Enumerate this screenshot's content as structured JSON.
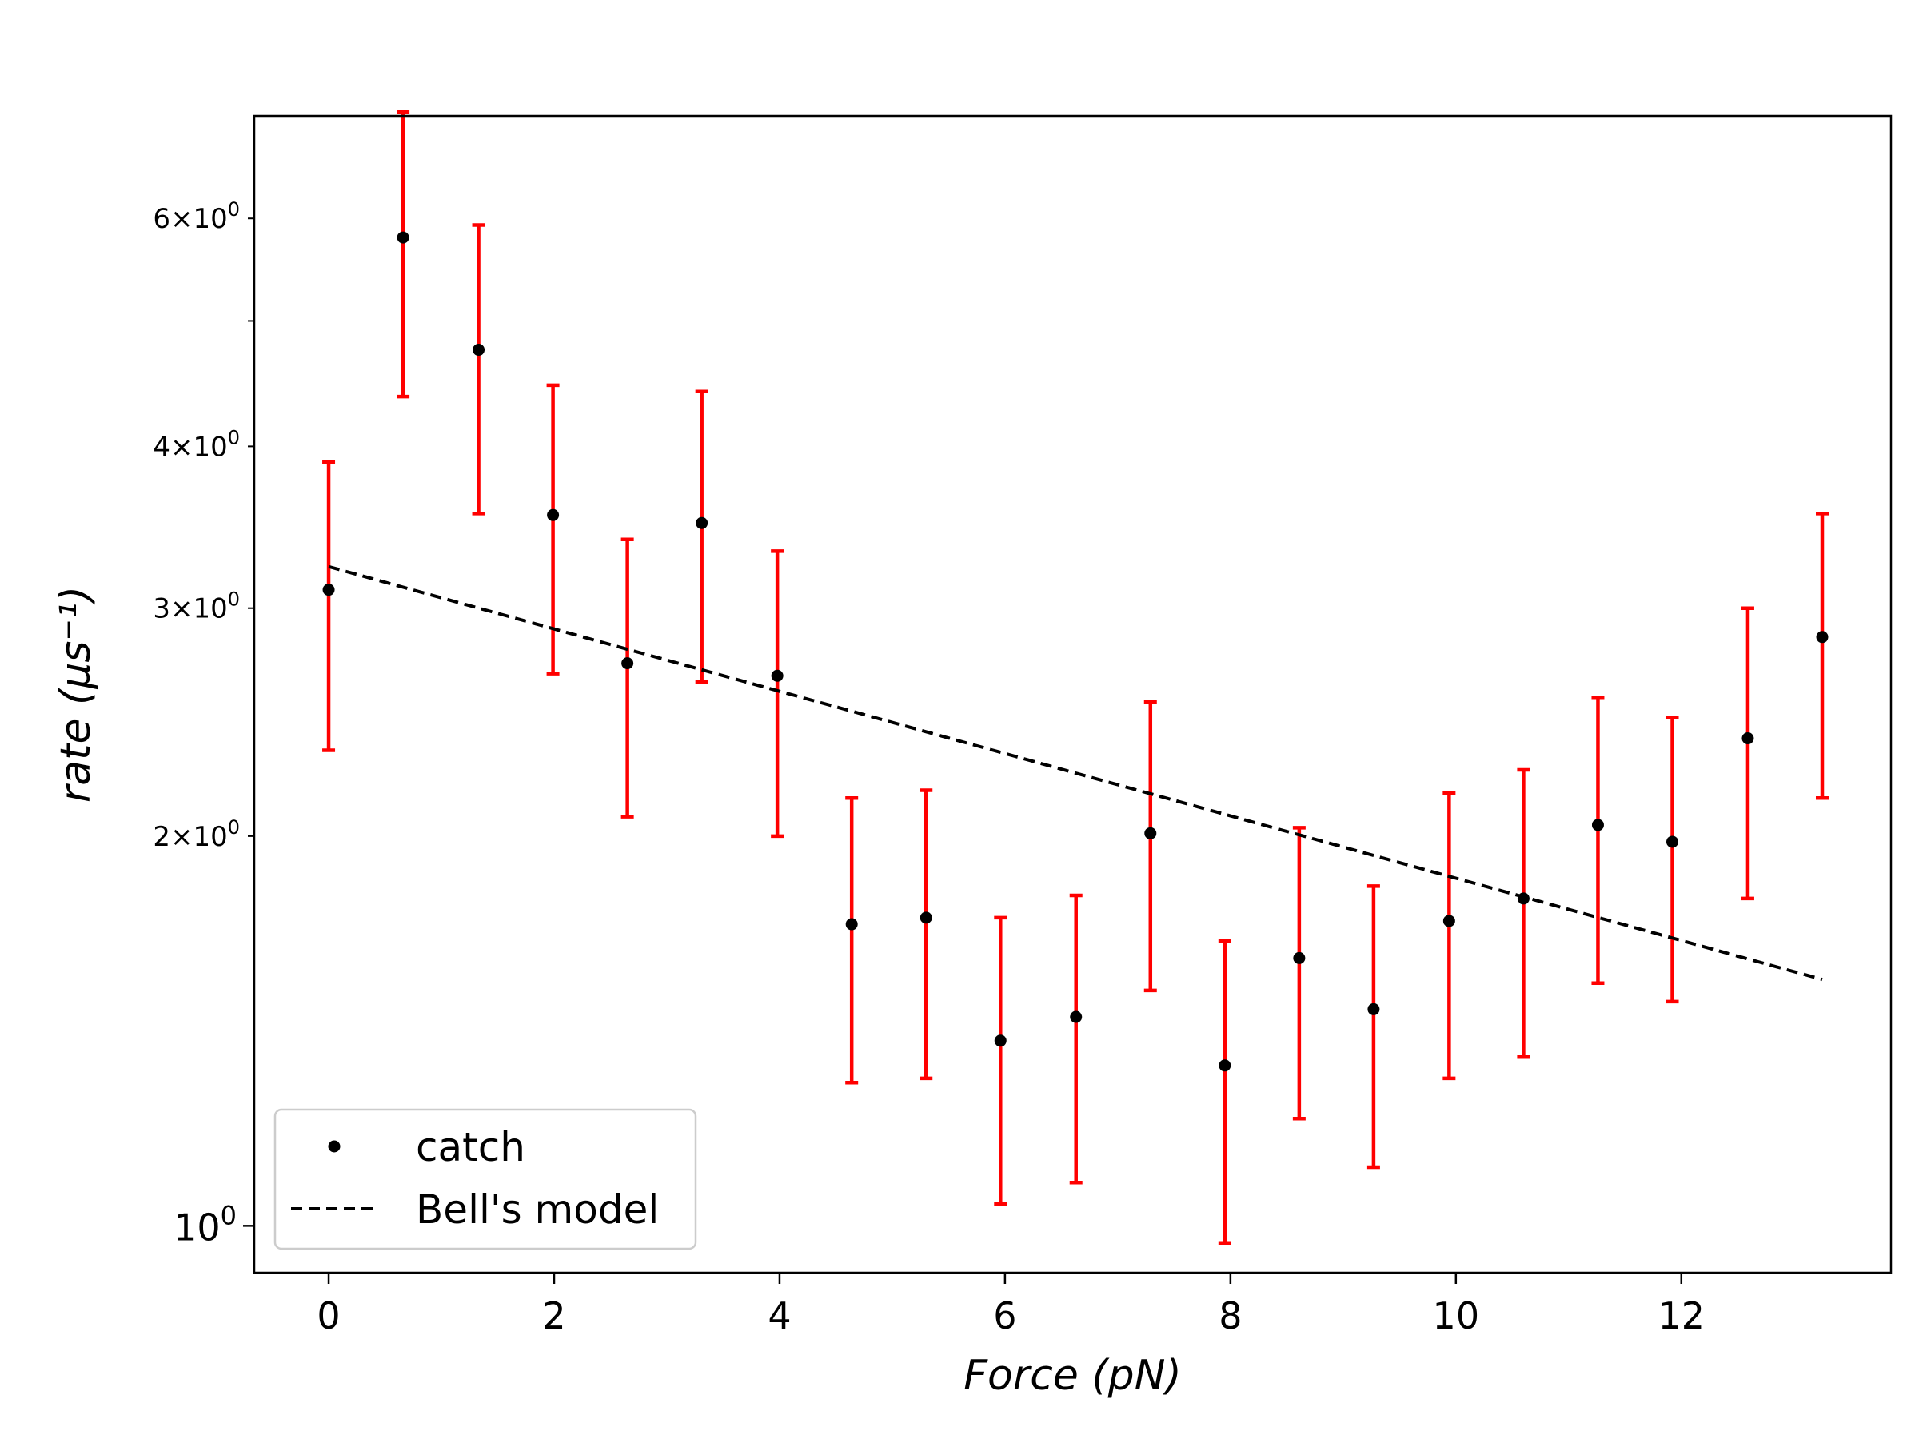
{
  "chart_data": {
    "type": "scatter",
    "xlabel": "Force (pN)",
    "ylabel": "rate (μs⁻¹)",
    "xlim": [
      -0.66,
      13.86
    ],
    "ylim": [
      0.92,
      7.2
    ],
    "y_scale": "log",
    "grid": false,
    "legend_position": "lower-left",
    "x_ticks": [
      0,
      2,
      4,
      6,
      8,
      10,
      12
    ],
    "x_tick_labels": [
      "0",
      "2",
      "4",
      "6",
      "8",
      "10",
      "12"
    ],
    "y_ticks_major": [
      {
        "value": 1,
        "label": "10",
        "exp": "0"
      }
    ],
    "y_ticks_minor_labeled": [
      {
        "value": 2,
        "mantissa": "2",
        "times": "×",
        "base": "10",
        "exp": "0"
      },
      {
        "value": 3,
        "mantissa": "3",
        "times": "×",
        "base": "10",
        "exp": "0"
      },
      {
        "value": 4,
        "mantissa": "4",
        "times": "×",
        "base": "10",
        "exp": "0"
      },
      {
        "value": 6,
        "mantissa": "6",
        "times": "×",
        "base": "10",
        "exp": "0"
      }
    ],
    "y_ticks_minor_unlabeled": [
      5
    ],
    "series": [
      {
        "name": "catch",
        "color": "#000000",
        "errorbar_color": "#ff0000",
        "x": [
          0.0,
          0.66,
          1.33,
          1.99,
          2.65,
          3.31,
          3.98,
          4.64,
          5.3,
          5.96,
          6.63,
          7.29,
          7.95,
          8.61,
          9.27,
          9.94,
          10.6,
          11.26,
          11.92,
          12.59,
          13.25
        ],
        "y": [
          3.1,
          5.8,
          4.75,
          3.54,
          2.72,
          3.49,
          2.66,
          1.71,
          1.73,
          1.39,
          1.45,
          2.01,
          1.33,
          1.61,
          1.47,
          1.72,
          1.79,
          2.04,
          1.98,
          2.38,
          2.85
        ],
        "ylow": [
          2.33,
          4.37,
          3.55,
          2.67,
          2.07,
          2.63,
          2.0,
          1.29,
          1.3,
          1.04,
          1.08,
          1.52,
          0.97,
          1.21,
          1.11,
          1.3,
          1.35,
          1.54,
          1.49,
          1.79,
          2.14
        ],
        "yhigh": [
          3.89,
          7.25,
          5.93,
          4.46,
          3.39,
          4.41,
          3.32,
          2.14,
          2.17,
          1.73,
          1.8,
          2.54,
          1.66,
          2.03,
          1.83,
          2.16,
          2.25,
          2.56,
          2.47,
          3.0,
          3.55
        ]
      },
      {
        "name": "Bell's model",
        "color": "#000000",
        "style": "dashed",
        "x": [
          0.0,
          13.25
        ],
        "y": [
          3.23,
          1.55
        ]
      }
    ]
  }
}
